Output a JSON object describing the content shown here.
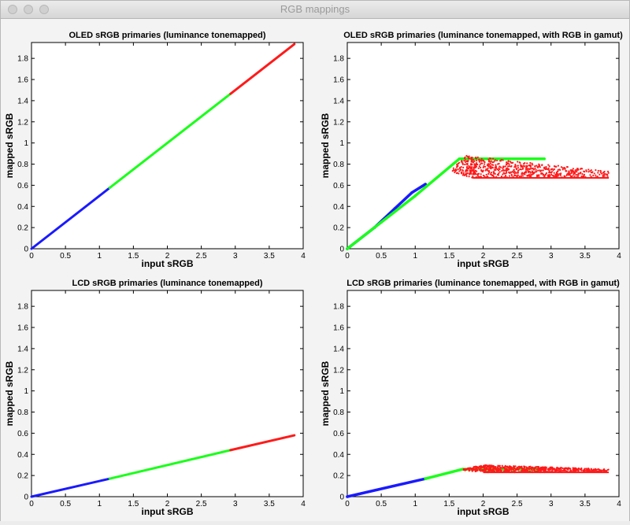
{
  "window": {
    "title": "RGB mappings",
    "buttons": [
      "close",
      "minimize",
      "zoom"
    ]
  },
  "colors": {
    "blue": "#1a1aff",
    "green": "#1aff1a",
    "red": "#ff1a1a",
    "background": "#f3f3f3"
  },
  "chart_data": [
    {
      "type": "line",
      "title": "OLED sRGB primaries (luminance tonemapped)",
      "xlabel": "input sRGB",
      "ylabel": "mapped sRGB",
      "xlim": [
        0,
        4
      ],
      "ylim": [
        0,
        1.95
      ],
      "xticks": [
        "0",
        "0.5",
        "1",
        "1.5",
        "2",
        "2.5",
        "3",
        "3.5",
        "4"
      ],
      "yticks": [
        "0",
        "0.2",
        "0.4",
        "0.6",
        "0.8",
        "1",
        "1.2",
        "1.4",
        "1.6",
        "1.8"
      ],
      "series": [
        {
          "color": "blue",
          "x": [
            0,
            1.15
          ],
          "y": [
            0,
            0.575
          ]
        },
        {
          "color": "green",
          "x": [
            1.15,
            2.93
          ],
          "y": [
            0.575,
            1.465
          ]
        },
        {
          "color": "red",
          "x": [
            2.93,
            3.87
          ],
          "y": [
            1.465,
            1.935
          ]
        }
      ]
    },
    {
      "type": "scatter",
      "title": "OLED sRGB primaries (luminance tonemapped, with RGB in gamut)",
      "xlabel": "input sRGB",
      "ylabel": "mapped sRGB",
      "xlim": [
        0,
        4
      ],
      "ylim": [
        0,
        1.95
      ],
      "xticks": [
        "0",
        "0.5",
        "1",
        "1.5",
        "2",
        "2.5",
        "3",
        "3.5",
        "4"
      ],
      "yticks": [
        "0",
        "0.2",
        "0.4",
        "0.6",
        "0.8",
        "1",
        "1.2",
        "1.4",
        "1.6",
        "1.8"
      ],
      "series": [
        {
          "color": "blue",
          "x": [
            0,
            0.4,
            0.7,
            0.95,
            1.15
          ],
          "y": [
            0,
            0.2,
            0.38,
            0.53,
            0.61
          ]
        },
        {
          "color": "green",
          "x": [
            0,
            0.5,
            1.0,
            1.65,
            2.9
          ],
          "y": [
            0,
            0.25,
            0.5,
            0.85,
            0.85
          ]
        },
        {
          "color": "red",
          "x": [
            1.55,
            1.75,
            2.5,
            3.85,
            3.85,
            1.85,
            1.55
          ],
          "y": [
            0.76,
            0.88,
            0.83,
            0.73,
            0.67,
            0.67,
            0.72
          ]
        }
      ]
    },
    {
      "type": "line",
      "title": "LCD sRGB primaries (luminance tonemapped)",
      "xlabel": "input sRGB",
      "ylabel": "mapped sRGB",
      "xlim": [
        0,
        4
      ],
      "ylim": [
        0,
        1.95
      ],
      "xticks": [
        "0",
        "0.5",
        "1",
        "1.5",
        "2",
        "2.5",
        "3",
        "3.5",
        "4"
      ],
      "yticks": [
        "0",
        "0.2",
        "0.4",
        "0.6",
        "0.8",
        "1",
        "1.2",
        "1.4",
        "1.6",
        "1.8"
      ],
      "series": [
        {
          "color": "blue",
          "x": [
            0,
            1.15
          ],
          "y": [
            0,
            0.17
          ]
        },
        {
          "color": "green",
          "x": [
            1.15,
            2.93
          ],
          "y": [
            0.17,
            0.44
          ]
        },
        {
          "color": "red",
          "x": [
            2.93,
            3.87
          ],
          "y": [
            0.44,
            0.58
          ]
        }
      ]
    },
    {
      "type": "scatter",
      "title": "LCD sRGB primaries (luminance tonemapped, with RGB in gamut)",
      "xlabel": "input sRGB",
      "ylabel": "mapped sRGB",
      "xlim": [
        0,
        4
      ],
      "ylim": [
        0,
        1.95
      ],
      "xticks": [
        "0",
        "0.5",
        "1",
        "1.5",
        "2",
        "2.5",
        "3",
        "3.5",
        "4"
      ],
      "yticks": [
        "0",
        "0.2",
        "0.4",
        "0.6",
        "0.8",
        "1",
        "1.2",
        "1.4",
        "1.6",
        "1.8"
      ],
      "series": [
        {
          "color": "blue",
          "x": [
            0,
            1.15
          ],
          "y": [
            0,
            0.17
          ]
        },
        {
          "color": "green",
          "x": [
            1.15,
            1.7,
            2.9
          ],
          "y": [
            0.17,
            0.26,
            0.26
          ]
        },
        {
          "color": "red",
          "x": [
            1.7,
            2.0,
            3.85,
            3.85,
            2.0,
            1.7
          ],
          "y": [
            0.26,
            0.3,
            0.26,
            0.23,
            0.23,
            0.25
          ]
        }
      ]
    }
  ]
}
